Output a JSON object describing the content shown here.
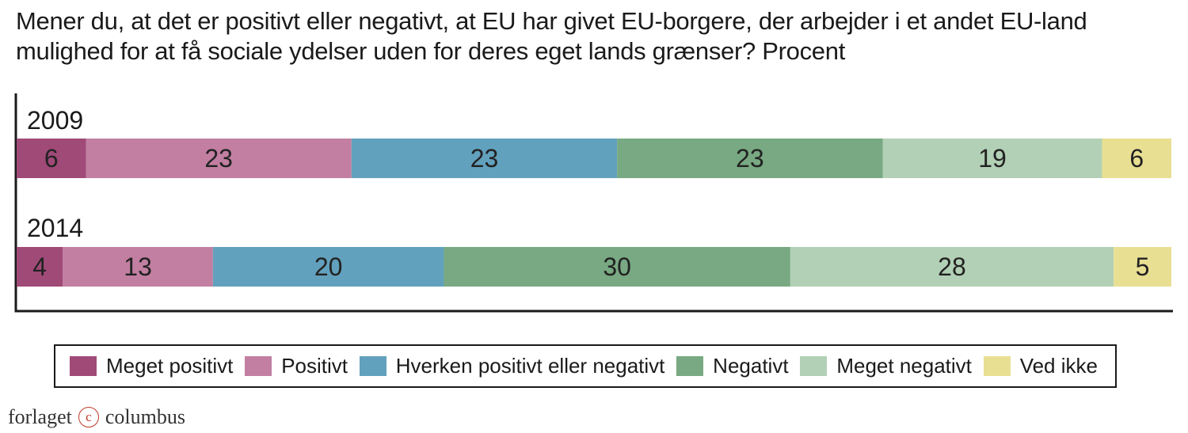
{
  "title": {
    "line1": "Mener du, at det er positivt eller negativt, at EU har givet EU-borgere, der arbejder i et andet EU-land",
    "line2": "mulighed for at få sociale ydelser uden for deres eget lands grænser? Procent"
  },
  "chart_data": {
    "type": "bar",
    "orientation": "horizontal",
    "stacked": true,
    "categories": [
      "2009",
      "2014"
    ],
    "series": [
      {
        "name": "Meget positivt",
        "color": "#a04a78",
        "values": [
          6,
          4
        ]
      },
      {
        "name": "Positivt",
        "color": "#c27fa1",
        "values": [
          23,
          13
        ]
      },
      {
        "name": "Hverken positivt eller negativt",
        "color": "#62a1bd",
        "values": [
          23,
          20
        ]
      },
      {
        "name": "Negativt",
        "color": "#78a982",
        "values": [
          23,
          30
        ]
      },
      {
        "name": "Meget negativt",
        "color": "#b2d0b5",
        "values": [
          19,
          28
        ]
      },
      {
        "name": "Ved ikke",
        "color": "#e9df93",
        "values": [
          6,
          5
        ]
      }
    ],
    "legend_placement": "bottom",
    "grid": false
  },
  "footer": {
    "text_left": "forlaget",
    "symbol": "c",
    "text_right": "columbus"
  }
}
